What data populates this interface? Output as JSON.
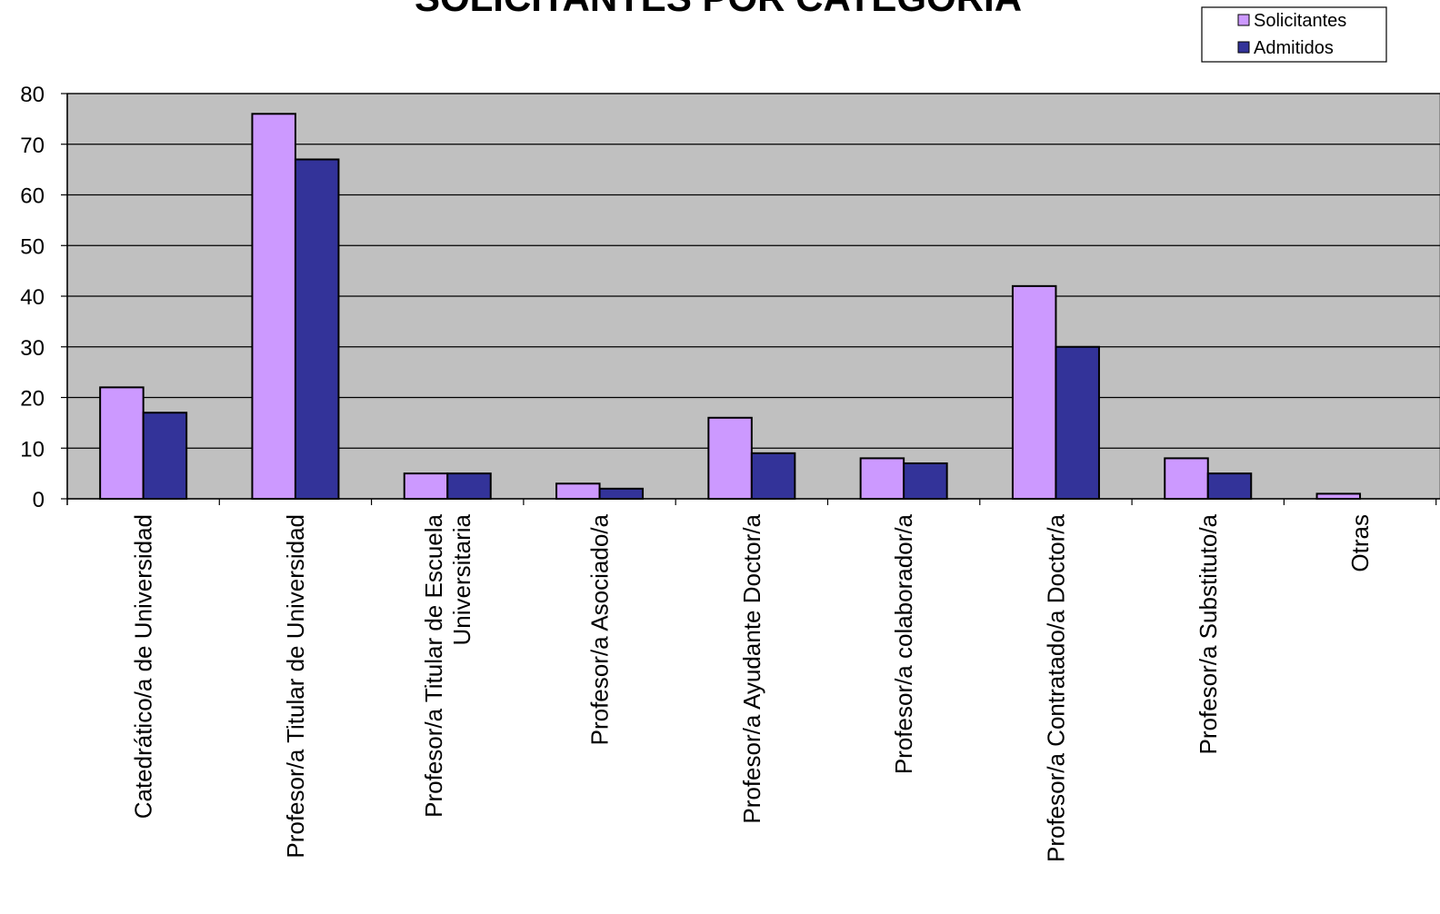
{
  "chart_data": {
    "type": "bar",
    "title": "SOLICITANTES POR CATEGORÍA",
    "xlabel": "",
    "ylabel": "",
    "ylim": [
      0,
      80
    ],
    "yticks": [
      "0",
      "10",
      "20",
      "30",
      "40",
      "50",
      "60",
      "70",
      "80"
    ],
    "grid": true,
    "legend_position": "top-right",
    "plot_background": "#c0c0c0",
    "categories": [
      [
        "Catedrático/a de Universidad"
      ],
      [
        "Profesor/a Titular de Universidad"
      ],
      [
        "Profesor/a Titular de Escuela",
        "Universitaria"
      ],
      [
        "Profesor/a Asociado/a"
      ],
      [
        "Profesor/a Ayudante Doctor/a"
      ],
      [
        "Profesor/a colaborador/a"
      ],
      [
        "Profesor/a Contratado/a Doctor/a"
      ],
      [
        "Profesor/a Substituto/a"
      ],
      [
        "Otras"
      ]
    ],
    "series": [
      {
        "name": "Solicitantes",
        "color": "#cc99ff",
        "values": [
          22,
          76,
          5,
          3,
          16,
          8,
          42,
          8,
          1
        ]
      },
      {
        "name": "Admitidos",
        "color": "#333399",
        "values": [
          17,
          67,
          5,
          2,
          9,
          7,
          30,
          5,
          0
        ]
      }
    ]
  }
}
